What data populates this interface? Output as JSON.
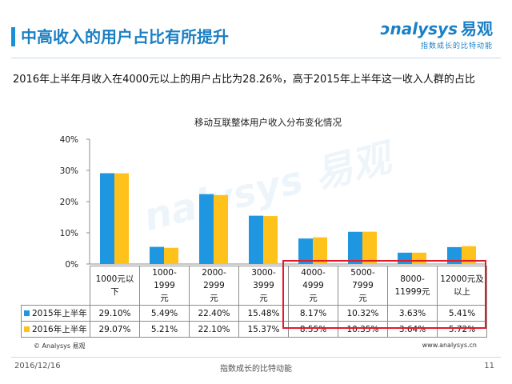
{
  "header": {
    "title": "中高收入的用户占比有所提升",
    "logo_text": "nalysys",
    "logo_cn": "易观",
    "logo_slogan": "指数成长的比特动能"
  },
  "summary": "2016年上半年月收入在4000元以上的用户占比为28.26%，高于2015年上半年这一收入人群的占比",
  "colors": {
    "series_2015": "#1f97e0",
    "series_2016": "#ffc21a",
    "highlight": "#e3192c",
    "accent": "#1a7fc4"
  },
  "chart_data": {
    "type": "bar",
    "title": "移动互联整体用户收入分布变化情况",
    "categories": [
      "1000元以下",
      "1000-1999元",
      "2000-2999元",
      "3000-3999元",
      "4000-4999元",
      "5000-7999元",
      "8000-11999元",
      "12000元及以上"
    ],
    "category_lines": [
      [
        "1000元以下"
      ],
      [
        "1000-1999",
        "元"
      ],
      [
        "2000-2999",
        "元"
      ],
      [
        "3000-3999",
        "元"
      ],
      [
        "4000-4999",
        "元"
      ],
      [
        "5000-7999",
        "元"
      ],
      [
        "8000-",
        "11999元"
      ],
      [
        "12000元及",
        "以上"
      ]
    ],
    "series": [
      {
        "name": "2015年上半年",
        "values": [
          29.1,
          5.49,
          22.4,
          15.48,
          8.17,
          10.32,
          3.63,
          5.41
        ],
        "labels": [
          "29.10%",
          "5.49%",
          "22.40%",
          "15.48%",
          "8.17%",
          "10.32%",
          "3.63%",
          "5.41%"
        ]
      },
      {
        "name": "2016年上半年",
        "values": [
          29.07,
          5.21,
          22.1,
          15.37,
          8.55,
          10.35,
          3.64,
          5.72
        ],
        "labels": [
          "29.07%",
          "5.21%",
          "22.10%",
          "15.37%",
          "8.55%",
          "10.35%",
          "3.64%",
          "5.72%"
        ]
      }
    ],
    "ylim": [
      0,
      40
    ],
    "yticks": [
      0,
      10,
      20,
      30,
      40
    ],
    "ytick_labels": [
      "0%",
      "10%",
      "20%",
      "30%",
      "40%"
    ],
    "grid": false,
    "legend": "table"
  },
  "footer": {
    "copyright": "© Analysys 易观",
    "website": "www.analysys.cn",
    "date": "2016/12/16",
    "slogan": "指数成长的比特动能",
    "page": "11"
  }
}
